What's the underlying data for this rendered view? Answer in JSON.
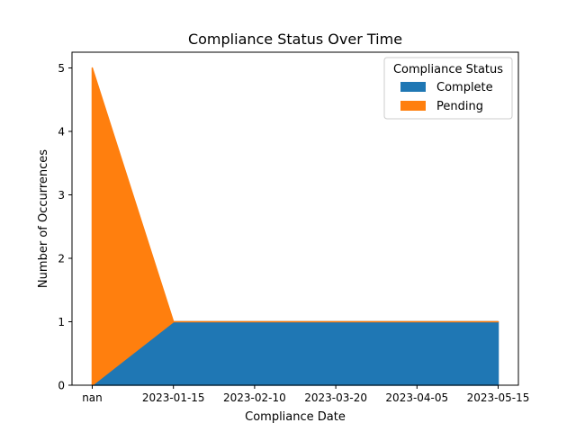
{
  "chart_data": {
    "type": "area",
    "stacked": true,
    "title": "Compliance Status Over Time",
    "xlabel": "Compliance Date",
    "ylabel": "Number of Occurrences",
    "categories": [
      "nan",
      "2023-01-15",
      "2023-02-10",
      "2023-03-20",
      "2023-04-05",
      "2023-05-15"
    ],
    "ylim": [
      0,
      5
    ],
    "yticks": [
      0,
      1,
      2,
      3,
      4,
      5
    ],
    "series": [
      {
        "name": "Complete",
        "values": [
          0,
          1,
          1,
          1,
          1,
          1
        ],
        "color": "#1f77b4"
      },
      {
        "name": "Pending",
        "values": [
          5,
          0,
          0,
          0,
          0,
          0
        ],
        "color": "#ff7f0e"
      }
    ],
    "legend": {
      "title": "Compliance Status",
      "position": "top-right"
    },
    "grid": false
  }
}
